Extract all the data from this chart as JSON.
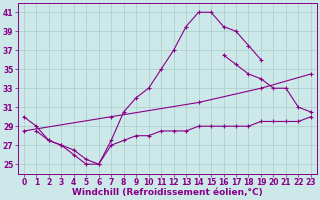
{
  "background_color": "#cde8e8",
  "grid_color": "#aacccc",
  "line_color": "#880088",
  "xlabel": "Windchill (Refroidissement éolien,°C)",
  "xlabel_fontsize": 6.5,
  "tick_fontsize": 5.5,
  "xlim": [
    -0.5,
    23.5
  ],
  "ylim": [
    24.0,
    42.0
  ],
  "yticks": [
    25,
    27,
    29,
    31,
    33,
    35,
    37,
    39,
    41
  ],
  "xticks": [
    0,
    1,
    2,
    3,
    4,
    5,
    6,
    7,
    8,
    9,
    10,
    11,
    12,
    13,
    14,
    15,
    16,
    17,
    18,
    19,
    20,
    21,
    22,
    23
  ],
  "curves": [
    {
      "x": [
        0,
        1,
        2,
        3,
        4,
        5,
        6,
        7,
        8,
        9,
        10,
        11,
        12,
        13,
        14,
        15,
        16,
        17,
        18,
        19
      ],
      "y": [
        30.0,
        29.0,
        27.5,
        27.0,
        26.0,
        25.0,
        25.0,
        27.5,
        30.5,
        32.0,
        33.0,
        35.0,
        37.0,
        39.5,
        41.0,
        41.0,
        39.5,
        39.0,
        37.5,
        36.0
      ]
    },
    {
      "x": [
        16,
        17,
        18,
        19,
        20,
        21,
        22,
        23
      ],
      "y": [
        36.5,
        35.5,
        34.5,
        34.0,
        33.0,
        33.0,
        31.0,
        30.5
      ]
    },
    {
      "x": [
        0,
        7,
        14,
        19,
        23
      ],
      "y": [
        28.5,
        30.0,
        31.5,
        33.0,
        34.5
      ]
    },
    {
      "x": [
        1,
        2,
        3,
        4,
        5,
        6,
        7,
        8,
        9,
        10,
        11,
        12,
        13,
        14,
        15,
        16,
        17,
        18,
        19,
        20,
        21,
        22,
        23
      ],
      "y": [
        28.5,
        27.5,
        27.0,
        26.5,
        25.5,
        25.0,
        27.0,
        27.5,
        28.0,
        28.0,
        28.5,
        28.5,
        28.5,
        29.0,
        29.0,
        29.0,
        29.0,
        29.0,
        29.5,
        29.5,
        29.5,
        29.5,
        30.0
      ]
    }
  ]
}
